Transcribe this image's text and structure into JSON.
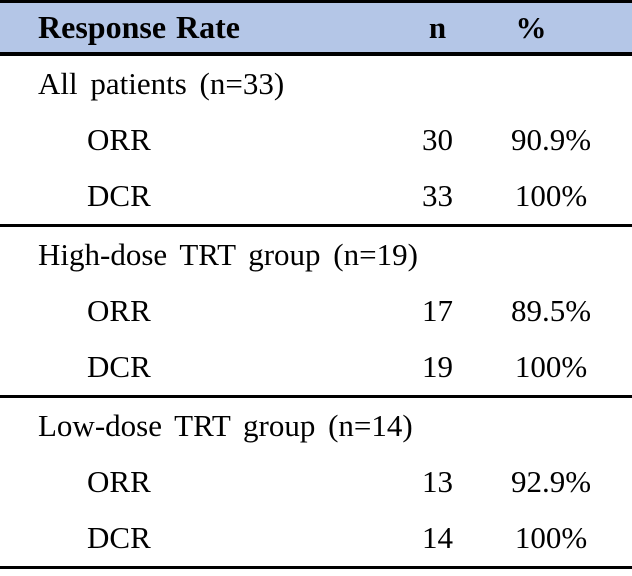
{
  "table": {
    "colors": {
      "header_bg": "#b4c6e7",
      "border": "#000000",
      "text": "#000000",
      "background": "#ffffff"
    },
    "header": {
      "label": "Response Rate",
      "n": "n",
      "pct": "%"
    },
    "sections": [
      {
        "group_label": "All patients (n=33)",
        "rows": [
          {
            "label": "ORR",
            "n": "30",
            "pct": "90.9%"
          },
          {
            "label": "DCR",
            "n": "33",
            "pct": "100%"
          }
        ]
      },
      {
        "group_label": "High-dose TRT group (n=19)",
        "rows": [
          {
            "label": "ORR",
            "n": "17",
            "pct": "89.5%"
          },
          {
            "label": "DCR",
            "n": "19",
            "pct": "100%"
          }
        ]
      },
      {
        "group_label": "Low-dose TRT group (n=14)",
        "rows": [
          {
            "label": "ORR",
            "n": "13",
            "pct": "92.9%"
          },
          {
            "label": "DCR",
            "n": "14",
            "pct": "100%"
          }
        ]
      }
    ]
  }
}
